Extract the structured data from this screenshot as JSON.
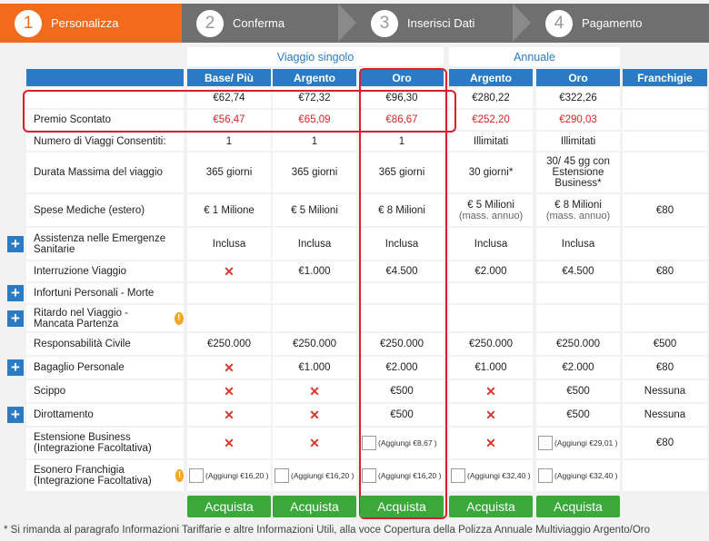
{
  "steps": [
    {
      "num": "1",
      "label": "Personalizza"
    },
    {
      "num": "2",
      "label": "Conferma"
    },
    {
      "num": "3",
      "label": "Inserisci Dati"
    },
    {
      "num": "4",
      "label": "Pagamento"
    }
  ],
  "groups": {
    "single": "Viaggio singolo",
    "annual": "Annuale"
  },
  "columns": [
    "Base/ Più",
    "Argento",
    "Oro",
    "Argento",
    "Oro",
    "Franchigie"
  ],
  "rows": [
    {
      "label": "",
      "cells": [
        "€62,74",
        "€72,32",
        "€96,30",
        "€280,22",
        "€322,26",
        ""
      ]
    },
    {
      "label": "Premio Scontato",
      "cells": [
        "€56,47",
        "€65,09",
        "€86,67",
        "€252,20",
        "€290,03",
        ""
      ]
    },
    {
      "label": "Numero di Viaggi Consentiti:",
      "cells": [
        "1",
        "1",
        "1",
        "Illimitati",
        "Illimitati",
        ""
      ]
    },
    {
      "label": "Durata Massima del viaggio",
      "cells": [
        "365 giorni",
        "365 giorni",
        "365 giorni",
        "30 giorni*",
        "30/ 45 gg con Estensione Business*",
        ""
      ]
    },
    {
      "label": "Spese Mediche (estero)",
      "cells": [
        "€ 1 Milione",
        "€ 5 Milioni",
        "€ 8 Milioni",
        "€ 5 Milioni",
        "€ 8 Milioni",
        "€80"
      ],
      "subs": [
        "",
        "",
        "",
        "(mass. annuo)",
        "(mass. annuo)",
        ""
      ]
    },
    {
      "label": "Assistenza nelle Emergenze Sanitarie",
      "cells": [
        "Inclusa",
        "Inclusa",
        "Inclusa",
        "Inclusa",
        "Inclusa",
        ""
      ]
    },
    {
      "label": "Interruzione Viaggio",
      "cells": [
        "✕",
        "€1.000",
        "€4.500",
        "€2.000",
        "€4.500",
        "€80"
      ]
    },
    {
      "label": "Infortuni Personali - Morte",
      "cells": [
        "",
        "",
        "",
        "",
        "",
        ""
      ]
    },
    {
      "label": "Ritardo nel Viaggio - Mancata Partenza",
      "cells": [
        "",
        "",
        "",
        "",
        "",
        ""
      ]
    },
    {
      "label": "Responsabilità Civile",
      "cells": [
        "€250.000",
        "€250.000",
        "€250.000",
        "€250.000",
        "€250.000",
        "€500"
      ]
    },
    {
      "label": "Bagaglio Personale",
      "cells": [
        "✕",
        "€1.000",
        "€2.000",
        "€1.000",
        "€2.000",
        "€80"
      ]
    },
    {
      "label": "Scippo",
      "cells": [
        "✕",
        "✕",
        "€500",
        "✕",
        "€500",
        "Nessuna"
      ]
    },
    {
      "label": "Dirottamento",
      "cells": [
        "✕",
        "✕",
        "€500",
        "✕",
        "€500",
        "Nessuna"
      ]
    },
    {
      "label": "Estensione Business (Integrazione Facoltativa)",
      "cells": [
        "✕",
        "✕",
        "(Aggiungi €8,67 )",
        "✕",
        "(Aggiungi €29,01 )",
        "€80"
      ]
    },
    {
      "label": "Esonero Franchigia (Integrazione Facoltativa)",
      "cells": [
        "(Aggiungi €16,20 )",
        "(Aggiungi €16,20 )",
        "(Aggiungi €16,20 )",
        "(Aggiungi €32,40 )",
        "(Aggiungi €32,40 )",
        ""
      ]
    }
  ],
  "buy_label": "Acquista",
  "footnote": "* Si rimanda al paragrafo Informazioni Tariffarie e altre Informazioni Utili, alla voce Copertura della Polizza Annuale Multiviaggio Argento/Oro",
  "colors": {
    "accent": "#f26a1b",
    "header": "#2a7bc4",
    "buy": "#3aa83a",
    "highlight": "#d8202d"
  }
}
